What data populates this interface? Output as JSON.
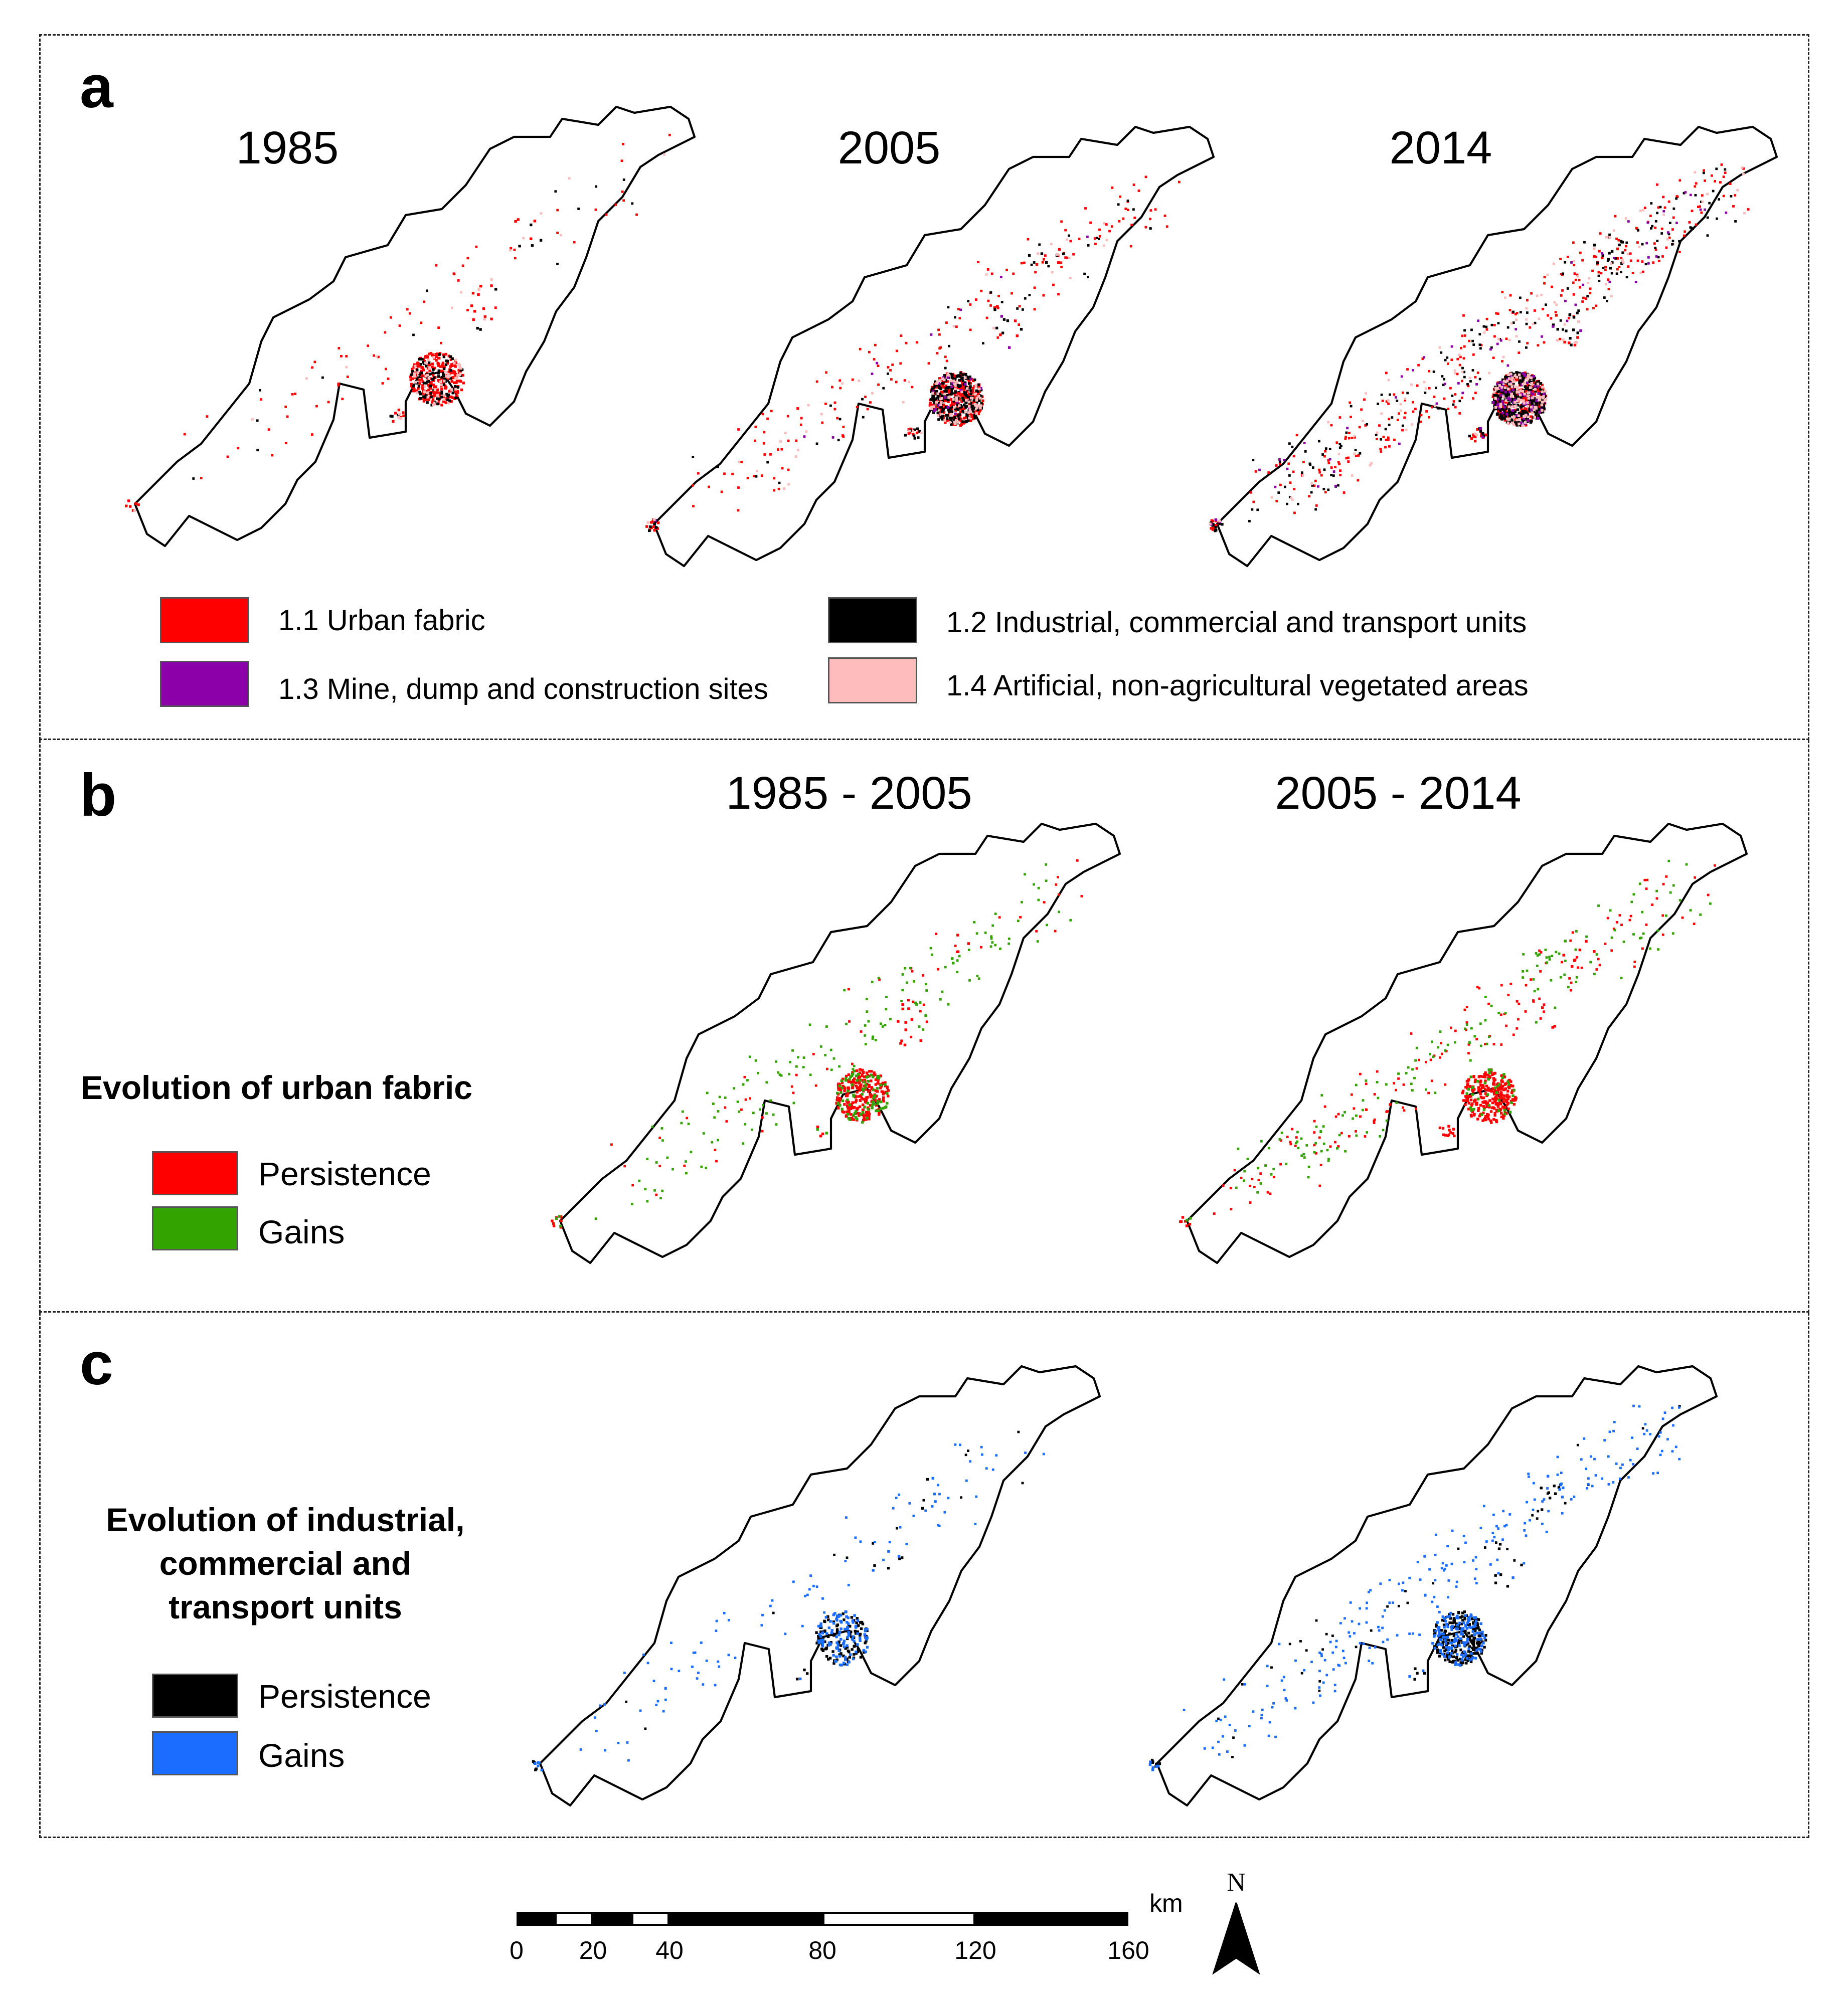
{
  "panels": {
    "a": {
      "letter": "a",
      "maps": [
        {
          "title": "1985",
          "classes": {
            "urban": [
              1,
              0.25
            ],
            "industrial": [
              0.35,
              0.05
            ],
            "mine": [
              0,
              0
            ],
            "vegetated": [
              0.2,
              0.05
            ]
          }
        },
        {
          "title": "2005",
          "classes": {
            "urban": [
              1.1,
              0.6
            ],
            "industrial": [
              0.9,
              0.15
            ],
            "mine": [
              0.08,
              0.03
            ],
            "vegetated": [
              0.3,
              0.1
            ]
          }
        },
        {
          "title": "2014",
          "classes": {
            "urban": [
              1.2,
              1.0
            ],
            "industrial": [
              1.4,
              0.6
            ],
            "mine": [
              0.3,
              0.2
            ],
            "vegetated": [
              0.5,
              0.3
            ]
          }
        }
      ],
      "legend": [
        {
          "label": "1.1 Urban fabric",
          "color": "#ff0000"
        },
        {
          "label": "1.2 Industrial, commercial and transport units",
          "color": "#000000"
        },
        {
          "label": "1.3 Mine, dump and construction sites",
          "color": "#8b00a8"
        },
        {
          "label": "1.4 Artificial, non-agricultural vegetated areas",
          "color": "#ffbcbc"
        }
      ]
    },
    "b": {
      "letter": "b",
      "legend_title": "Evolution of urban fabric",
      "maps": [
        {
          "title": "1985 - 2005",
          "classes": {
            "persistence": [
              1,
              0.2
            ],
            "gains": [
              0.35,
              0.55
            ]
          }
        },
        {
          "title": "2005 - 2014",
          "classes": {
            "persistence": [
              1.1,
              0.6
            ],
            "gains": [
              0.15,
              0.6
            ]
          }
        }
      ],
      "legend": [
        {
          "label": "Persistence",
          "color": "#ff0000"
        },
        {
          "label": "Gains",
          "color": "#33a300"
        }
      ]
    },
    "c": {
      "letter": "c",
      "legend_title_lines": [
        "Evolution of industrial,",
        "commercial and",
        "transport units"
      ],
      "maps": [
        {
          "classes": {
            "persistence": [
              0.5,
              0.05
            ],
            "gains": [
              0.45,
              0.35
            ]
          }
        },
        {
          "classes": {
            "persistence": [
              0.9,
              0.15
            ],
            "gains": [
              0.6,
              0.85
            ]
          }
        }
      ],
      "legend": [
        {
          "label": "Persistence",
          "color": "#000000"
        },
        {
          "label": "Gains",
          "color": "#1a6dff"
        }
      ]
    }
  },
  "scale_bar": {
    "unit": "km",
    "ticks": [
      {
        "km": 0,
        "label": "0"
      },
      {
        "km": 20,
        "label": "20"
      },
      {
        "km": 40,
        "label": "40"
      },
      {
        "km": 80,
        "label": "80"
      },
      {
        "km": 120,
        "label": "120"
      },
      {
        "km": 160,
        "label": "160"
      }
    ],
    "segments_km": [
      [
        0,
        10,
        "#000"
      ],
      [
        10,
        20,
        "#fff"
      ],
      [
        20,
        30,
        "#000"
      ],
      [
        30,
        40,
        "#fff"
      ],
      [
        40,
        80,
        "#000"
      ],
      [
        80,
        120,
        "#fff"
      ],
      [
        120,
        160,
        "#000"
      ]
    ]
  },
  "north_arrow": {
    "label": "N"
  }
}
